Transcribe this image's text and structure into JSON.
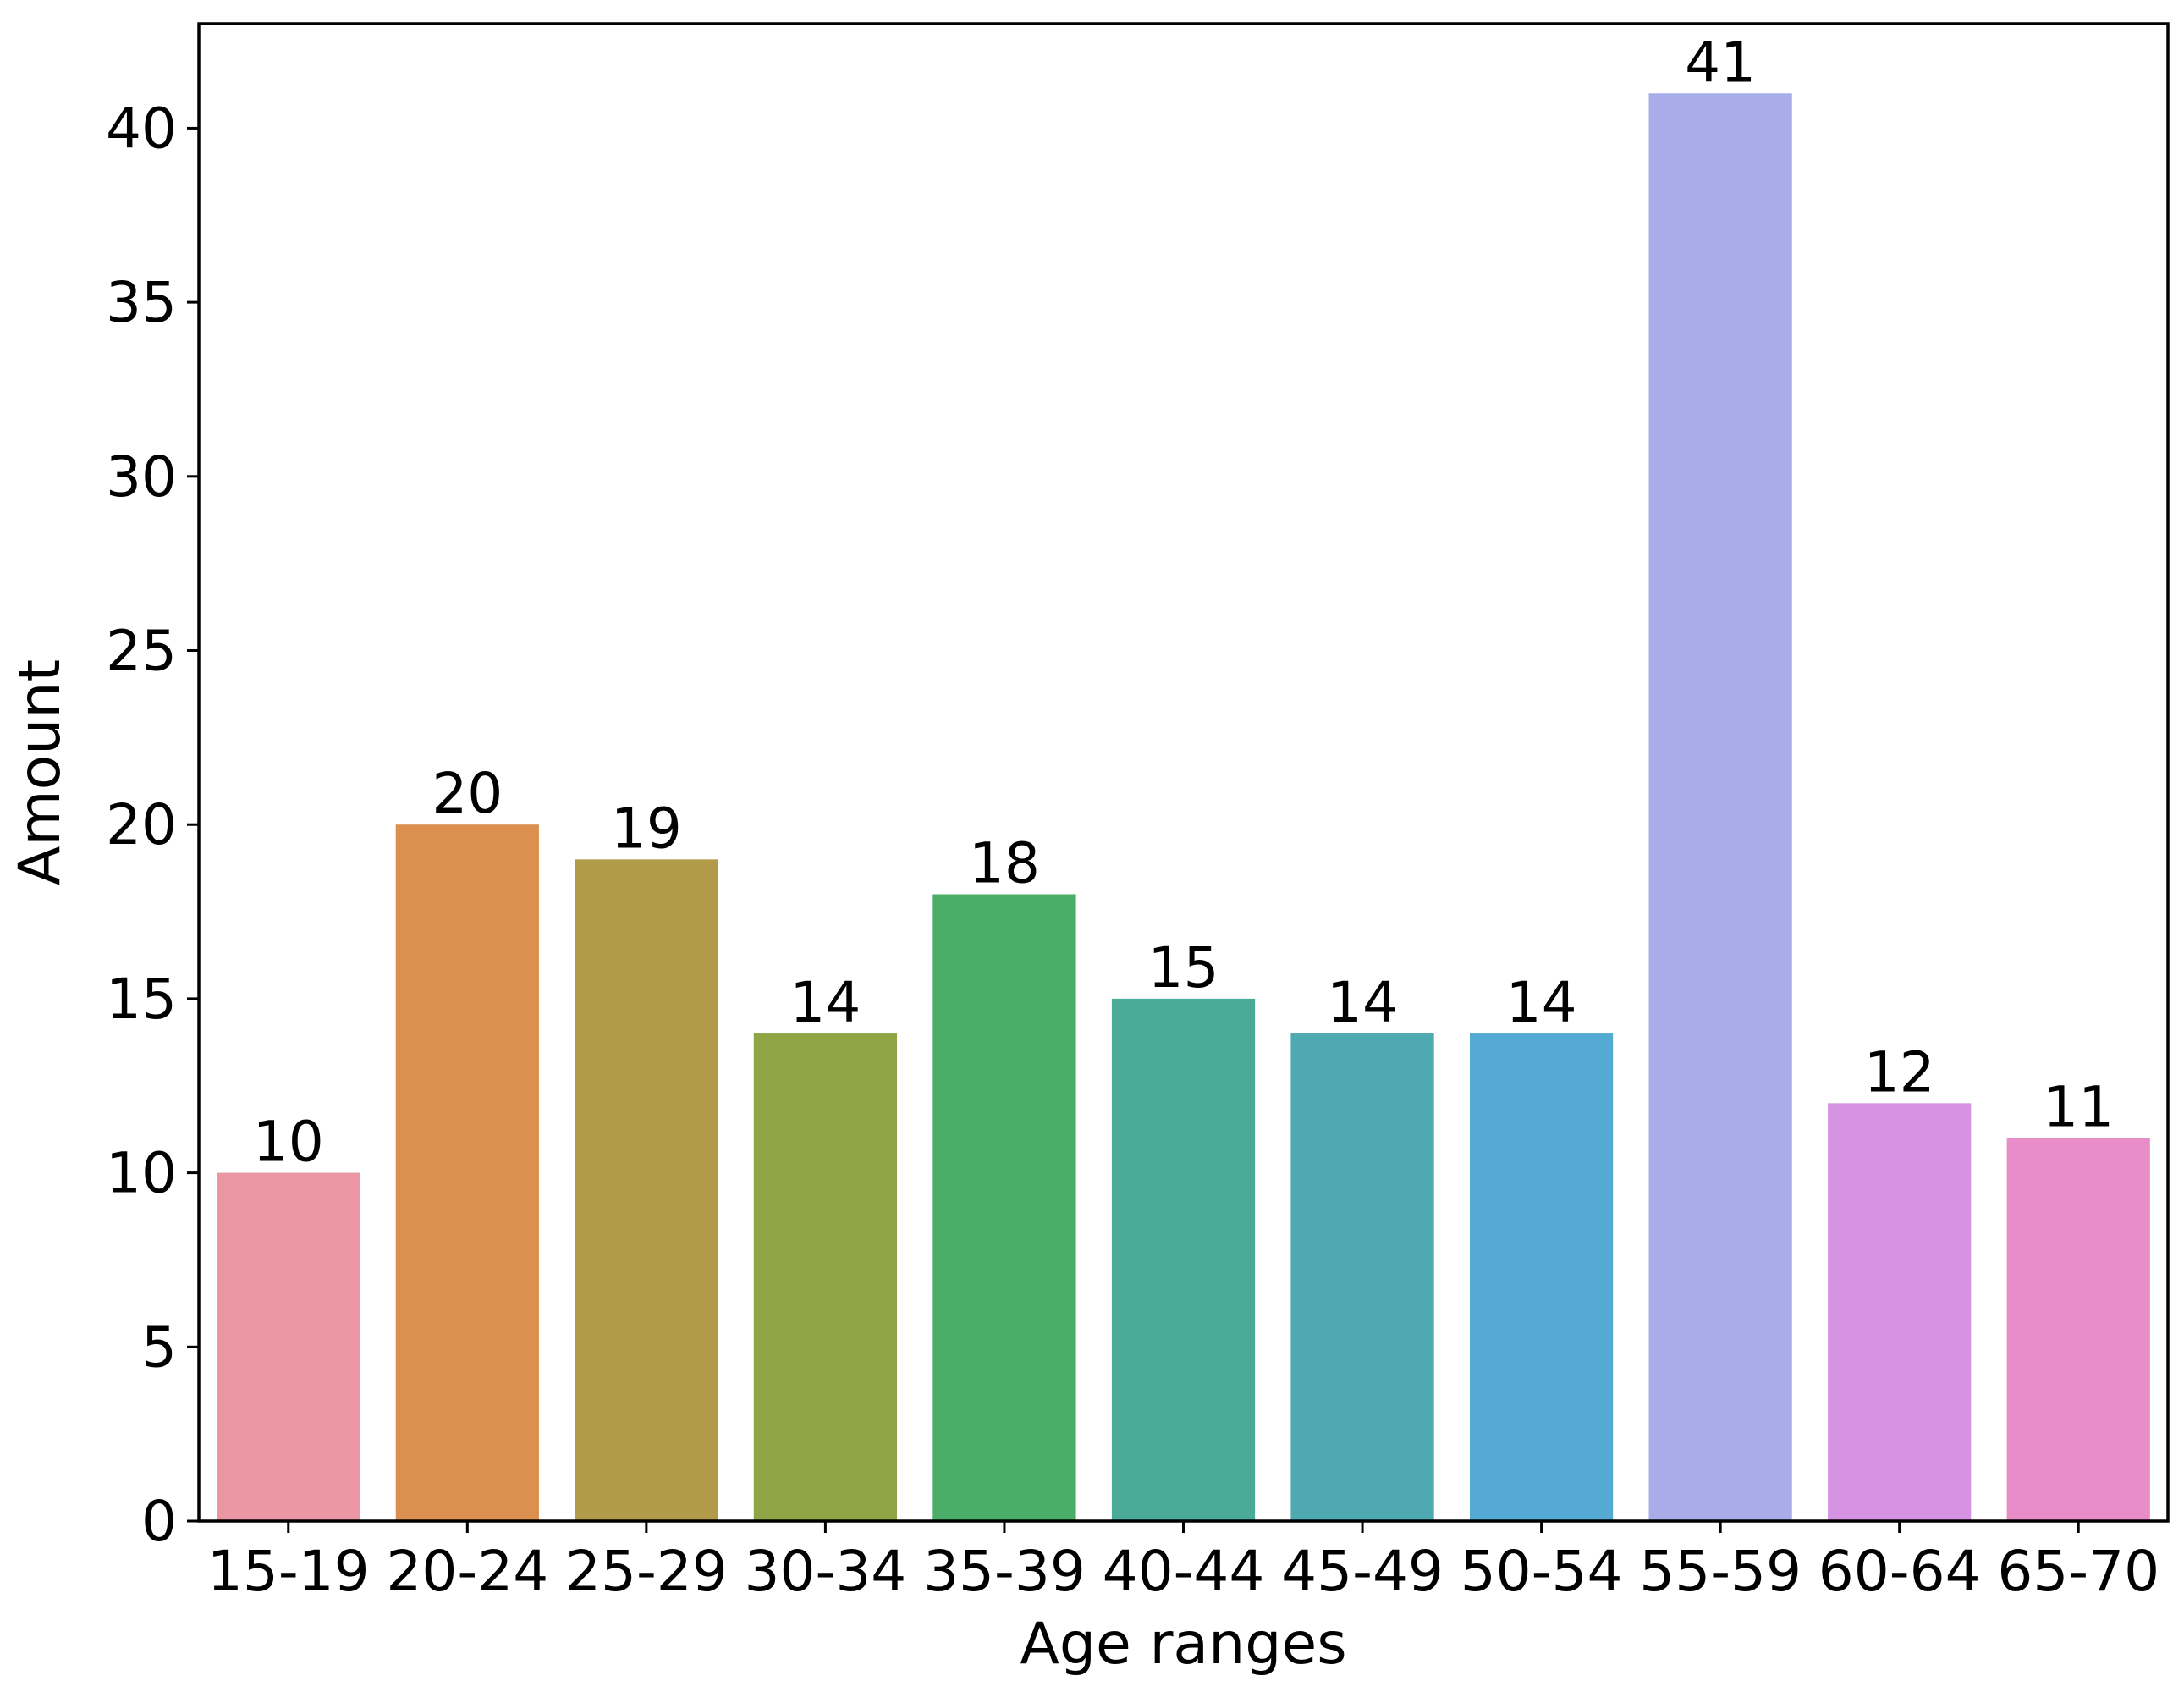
{
  "chart_data": {
    "type": "bar",
    "title": "",
    "xlabel": "Age ranges",
    "ylabel": "Amount",
    "categories": [
      "15-19",
      "20-24",
      "25-29",
      "30-34",
      "35-39",
      "40-44",
      "45-49",
      "50-54",
      "55-59",
      "60-64",
      "65-70"
    ],
    "values": [
      10,
      20,
      19,
      14,
      18,
      15,
      14,
      14,
      41,
      12,
      11
    ],
    "colors": [
      "#ea96a3",
      "#dc904f",
      "#b19b48",
      "#8ea546",
      "#4aae68",
      "#4aab98",
      "#4ea9b0",
      "#55aad3",
      "#a8adea",
      "#d693e4",
      "#e88dc7"
    ],
    "ylim": [
      0,
      43
    ],
    "yticks": [
      0,
      5,
      10,
      15,
      20,
      25,
      30,
      35,
      40
    ],
    "grid": false,
    "legend": "none"
  }
}
